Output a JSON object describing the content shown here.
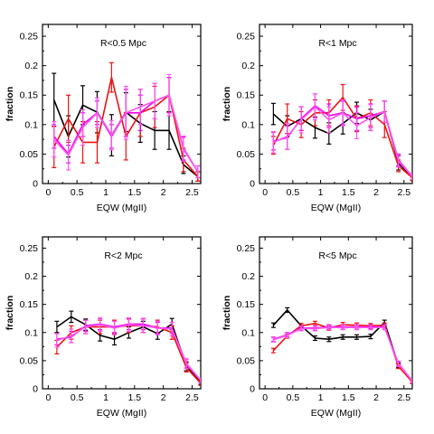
{
  "colors": {
    "black": "#000000",
    "red": "#ee1111",
    "magenta": "#ee00ee",
    "pink": "#ff55ee"
  },
  "chart_data": [
    {
      "type": "line",
      "title": "R<0.5 Mpc",
      "xlabel": "EQW (MgII)",
      "ylabel": "fraction",
      "xlim": [
        -0.1,
        2.65
      ],
      "ylim": [
        0,
        0.27
      ],
      "xticks": [
        0,
        0.5,
        1,
        1.5,
        2,
        2.5
      ],
      "xtick_labels": [
        "0",
        "0.5",
        "1",
        "1.5",
        "2",
        "2.5"
      ],
      "yticks": [
        0,
        0.05,
        0.1,
        0.15,
        0.2,
        0.25
      ],
      "ytick_labels": [
        "0",
        "0.05",
        "0.1",
        "0.15",
        "0.2",
        "0.25"
      ],
      "x": [
        0.1,
        0.35,
        0.6,
        0.85,
        1.1,
        1.35,
        1.6,
        1.85,
        2.1,
        2.35,
        2.6
      ],
      "series": [
        {
          "color": "#000000",
          "values": [
            0.142,
            0.08,
            0.133,
            0.121,
            0.082,
            0.121,
            0.102,
            0.09,
            0.09,
            0.032,
            0.012
          ],
          "err": [
            0.045,
            0.035,
            0.033,
            0.035,
            0.035,
            0.033,
            0.032,
            0.032,
            0.032,
            0.015,
            0.008
          ]
        },
        {
          "color": "#ee1111",
          "values": [
            0.062,
            0.11,
            0.07,
            0.07,
            0.18,
            0.08,
            0.12,
            0.13,
            0.15,
            0.04,
            0.012
          ],
          "err": [
            0.035,
            0.04,
            0.035,
            0.035,
            0.025,
            0.04,
            0.04,
            0.035,
            0.03,
            0.02,
            0.008
          ]
        },
        {
          "color": "#ee00ee",
          "values": [
            0.08,
            0.05,
            0.1,
            0.12,
            0.08,
            0.12,
            0.12,
            0.14,
            0.15,
            0.06,
            0.02
          ],
          "err": [
            0.02,
            0.015,
            0.02,
            0.02,
            0.02,
            0.04,
            0.03,
            0.03,
            0.03,
            0.02,
            0.01
          ]
        },
        {
          "color": "#ff55ee",
          "values": [
            0.075,
            0.048,
            0.095,
            0.12,
            0.082,
            0.12,
            0.13,
            0.14,
            0.15,
            0.058,
            0.02
          ],
          "err": [
            0.03,
            0.025,
            0.03,
            0.025,
            0.025,
            0.045,
            0.03,
            0.03,
            0.035,
            0.02,
            0.01
          ]
        }
      ]
    },
    {
      "type": "line",
      "title": "R<1 Mpc",
      "xlabel": "EQW (MgII)",
      "ylabel": "fraction",
      "xlim": [
        -0.1,
        2.65
      ],
      "ylim": [
        0,
        0.27
      ],
      "xticks": [
        0,
        0.5,
        1,
        1.5,
        2,
        2.5
      ],
      "xtick_labels": [
        "0",
        "0.5",
        "1",
        "1.5",
        "2",
        "2.5"
      ],
      "yticks": [
        0,
        0.05,
        0.1,
        0.15,
        0.2,
        0.25
      ],
      "ytick_labels": [
        "0",
        "0.05",
        "0.1",
        "0.15",
        "0.2",
        "0.25"
      ],
      "x": [
        0.15,
        0.4,
        0.65,
        0.9,
        1.15,
        1.4,
        1.65,
        1.9,
        2.15,
        2.4,
        2.65
      ],
      "series": [
        {
          "color": "#000000",
          "values": [
            0.118,
            0.097,
            0.11,
            0.095,
            0.085,
            0.102,
            0.12,
            0.108,
            0.122,
            0.035,
            0.01
          ],
          "err": [
            0.018,
            0.018,
            0.02,
            0.018,
            0.018,
            0.018,
            0.018,
            0.018,
            0.018,
            0.012,
            0.005
          ]
        },
        {
          "color": "#ee1111",
          "values": [
            0.065,
            0.11,
            0.1,
            0.12,
            0.12,
            0.146,
            0.11,
            0.12,
            0.1,
            0.03,
            0.01
          ],
          "err": [
            0.015,
            0.025,
            0.022,
            0.022,
            0.022,
            0.022,
            0.022,
            0.022,
            0.022,
            0.01,
            0.005
          ]
        },
        {
          "color": "#ee00ee",
          "values": [
            0.072,
            0.078,
            0.11,
            0.132,
            0.115,
            0.12,
            0.11,
            0.115,
            0.122,
            0.04,
            0.012
          ],
          "err": [
            0.015,
            0.02,
            0.02,
            0.02,
            0.02,
            0.02,
            0.02,
            0.02,
            0.018,
            0.01,
            0.005
          ]
        },
        {
          "color": "#ff55ee",
          "values": [
            0.07,
            0.08,
            0.108,
            0.13,
            0.108,
            0.12,
            0.098,
            0.112,
            0.122,
            0.038,
            0.012
          ],
          "err": [
            0.018,
            0.022,
            0.022,
            0.022,
            0.022,
            0.022,
            0.022,
            0.022,
            0.018,
            0.01,
            0.005
          ]
        }
      ]
    },
    {
      "type": "line",
      "title": "R<2 Mpc",
      "xlabel": "EQW (MgII)",
      "ylabel": "fraction",
      "xlim": [
        -0.1,
        2.65
      ],
      "ylim": [
        0,
        0.27
      ],
      "xticks": [
        0,
        0.5,
        1,
        1.5,
        2,
        2.5
      ],
      "xtick_labels": [
        "0",
        "0.5",
        "1",
        "1.5",
        "2",
        "2.5"
      ],
      "yticks": [
        0,
        0.05,
        0.1,
        0.15,
        0.2,
        0.25
      ],
      "ytick_labels": [
        "0",
        "0.05",
        "0.1",
        "0.15",
        "0.2",
        "0.25"
      ],
      "x": [
        0.15,
        0.4,
        0.65,
        0.9,
        1.15,
        1.4,
        1.65,
        1.9,
        2.15,
        2.4,
        2.65
      ],
      "series": [
        {
          "color": "#000000",
          "values": [
            0.11,
            0.128,
            0.114,
            0.095,
            0.088,
            0.1,
            0.11,
            0.098,
            0.115,
            0.04,
            0.012
          ],
          "err": [
            0.01,
            0.01,
            0.01,
            0.01,
            0.01,
            0.01,
            0.01,
            0.01,
            0.01,
            0.008,
            0.004
          ]
        },
        {
          "color": "#ee1111",
          "values": [
            0.074,
            0.1,
            0.11,
            0.11,
            0.11,
            0.112,
            0.112,
            0.11,
            0.1,
            0.038,
            0.01
          ],
          "err": [
            0.012,
            0.012,
            0.012,
            0.012,
            0.012,
            0.012,
            0.012,
            0.012,
            0.012,
            0.008,
            0.004
          ]
        },
        {
          "color": "#ee00ee",
          "values": [
            0.088,
            0.092,
            0.112,
            0.115,
            0.11,
            0.115,
            0.115,
            0.108,
            0.108,
            0.045,
            0.015
          ],
          "err": [
            0.01,
            0.01,
            0.01,
            0.01,
            0.01,
            0.01,
            0.01,
            0.01,
            0.01,
            0.008,
            0.004
          ]
        },
        {
          "color": "#ff55ee",
          "values": [
            0.086,
            0.094,
            0.11,
            0.114,
            0.108,
            0.114,
            0.112,
            0.108,
            0.106,
            0.044,
            0.015
          ],
          "err": [
            0.012,
            0.012,
            0.012,
            0.012,
            0.012,
            0.012,
            0.012,
            0.012,
            0.012,
            0.008,
            0.004
          ]
        }
      ]
    },
    {
      "type": "line",
      "title": "R<5 Mpc",
      "xlabel": "EQW (MgII)",
      "ylabel": "fraction",
      "xlim": [
        -0.1,
        2.65
      ],
      "ylim": [
        0,
        0.27
      ],
      "xticks": [
        0,
        0.5,
        1,
        1.5,
        2,
        2.5
      ],
      "xtick_labels": [
        "0",
        "0.5",
        "1",
        "1.5",
        "2",
        "2.5"
      ],
      "yticks": [
        0,
        0.05,
        0.1,
        0.15,
        0.2,
        0.25
      ],
      "ytick_labels": [
        "0",
        "0.05",
        "0.1",
        "0.15",
        "0.2",
        "0.25"
      ],
      "x": [
        0.15,
        0.4,
        0.65,
        0.9,
        1.15,
        1.4,
        1.65,
        1.9,
        2.15,
        2.4,
        2.65
      ],
      "series": [
        {
          "color": "#000000",
          "values": [
            0.113,
            0.14,
            0.112,
            0.09,
            0.088,
            0.092,
            0.092,
            0.093,
            0.118,
            0.042,
            0.012
          ],
          "err": [
            0.004,
            0.004,
            0.004,
            0.004,
            0.004,
            0.004,
            0.004,
            0.004,
            0.004,
            0.004,
            0.003
          ]
        },
        {
          "color": "#ee1111",
          "values": [
            0.068,
            0.094,
            0.112,
            0.116,
            0.108,
            0.114,
            0.113,
            0.112,
            0.113,
            0.04,
            0.012
          ],
          "err": [
            0.004,
            0.004,
            0.004,
            0.004,
            0.004,
            0.004,
            0.004,
            0.004,
            0.004,
            0.004,
            0.003
          ]
        },
        {
          "color": "#ee00ee",
          "values": [
            0.088,
            0.096,
            0.108,
            0.108,
            0.11,
            0.11,
            0.11,
            0.11,
            0.11,
            0.045,
            0.014
          ],
          "err": [
            0.004,
            0.004,
            0.004,
            0.004,
            0.004,
            0.004,
            0.004,
            0.004,
            0.004,
            0.004,
            0.003
          ]
        },
        {
          "color": "#ff55ee",
          "values": [
            0.087,
            0.095,
            0.107,
            0.107,
            0.109,
            0.109,
            0.109,
            0.109,
            0.109,
            0.044,
            0.014
          ],
          "err": [
            0.004,
            0.004,
            0.004,
            0.004,
            0.004,
            0.004,
            0.004,
            0.004,
            0.004,
            0.004,
            0.003
          ]
        }
      ]
    }
  ]
}
